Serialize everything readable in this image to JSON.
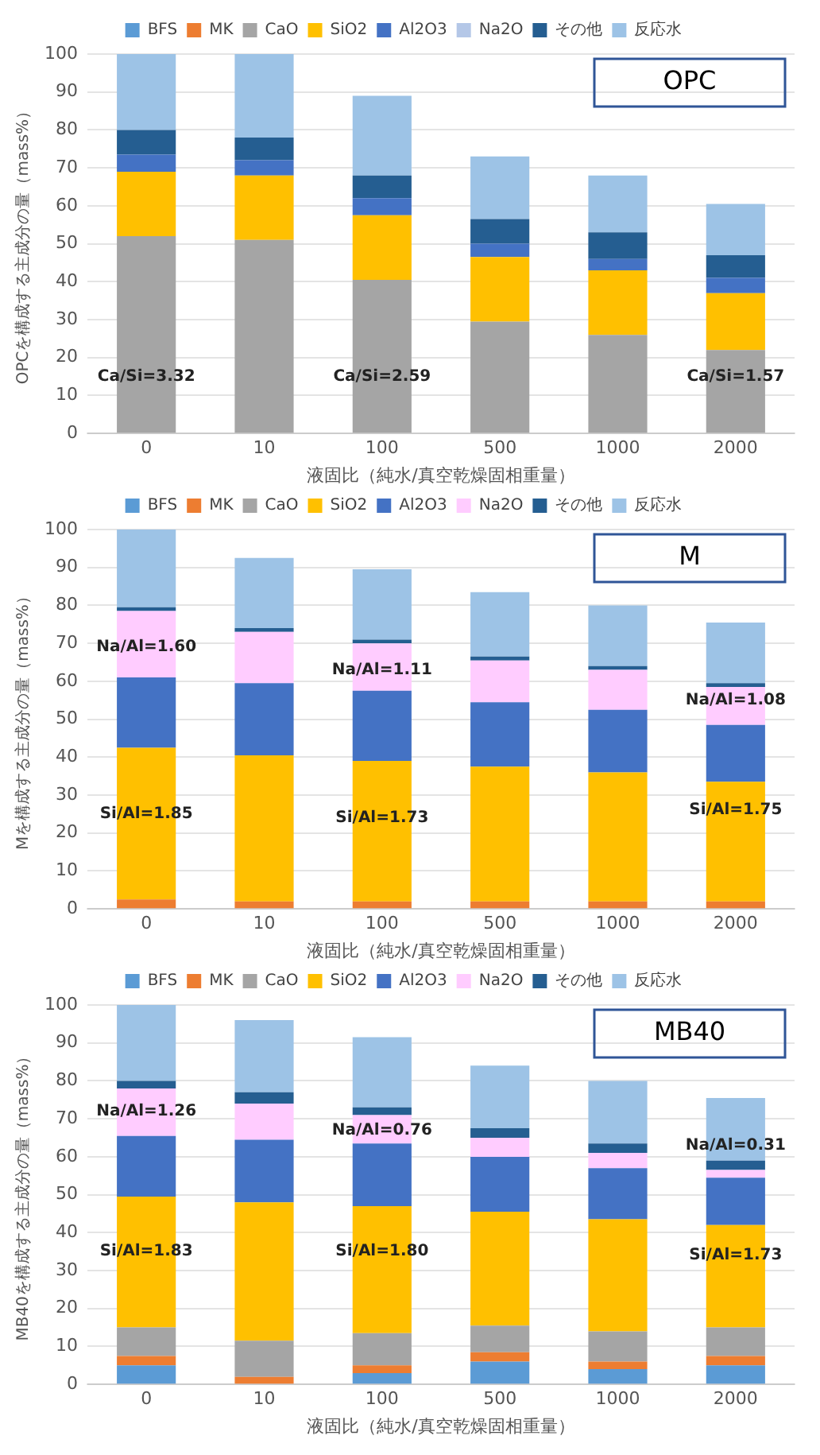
{
  "chart_data": [
    {
      "type": "bar",
      "stacked": true,
      "legend": "top",
      "grid": "y",
      "xlabel": "液固比（純水/真空乾燥固相重量）",
      "ylabel": "OPCを構成する主成分の量（mass%）",
      "categories": [
        "0",
        "10",
        "100",
        "500",
        "1000",
        "2000"
      ],
      "ylim": [
        0,
        100
      ],
      "yticks": [
        0,
        10,
        20,
        30,
        40,
        50,
        60,
        70,
        80,
        90,
        100
      ],
      "series": [
        {
          "name": "BFS",
          "color": "#5b9bd5",
          "values": [
            0,
            0,
            0,
            0,
            0,
            0
          ]
        },
        {
          "name": "MK",
          "color": "#ed7d31",
          "values": [
            0,
            0,
            0,
            0,
            0,
            0
          ]
        },
        {
          "name": "CaO",
          "color": "#a5a5a5",
          "values": [
            52,
            51,
            40.5,
            29.5,
            26,
            22
          ]
        },
        {
          "name": "SiO2",
          "color": "#ffc000",
          "values": [
            17,
            17,
            17,
            17,
            17,
            15
          ]
        },
        {
          "name": "Al2O3",
          "color": "#4472c4",
          "values": [
            4.5,
            4,
            4.5,
            3.5,
            3,
            4
          ]
        },
        {
          "name": "Na2O",
          "color": "#b4c7e7",
          "values": [
            0,
            0,
            0,
            0,
            0,
            0
          ]
        },
        {
          "name": "その他",
          "color": "#255e91",
          "values": [
            6.5,
            6,
            6,
            6.5,
            7,
            6
          ]
        },
        {
          "name": "反応水",
          "color": "#9dc3e6",
          "values": [
            20,
            22,
            21,
            16.5,
            15,
            13.5
          ]
        }
      ],
      "annotations": [
        "OPC",
        "Ca/Si=3.32",
        "Ca/Si=2.59",
        "Ca/Si=1.57"
      ]
    },
    {
      "type": "bar",
      "stacked": true,
      "legend": "top",
      "grid": "y",
      "xlabel": "液固比（純水/真空乾燥固相重量）",
      "ylabel": "Mを構成する主成分の量（mass%）",
      "categories": [
        "0",
        "10",
        "100",
        "500",
        "1000",
        "2000"
      ],
      "ylim": [
        0,
        100
      ],
      "yticks": [
        0,
        10,
        20,
        30,
        40,
        50,
        60,
        70,
        80,
        90,
        100
      ],
      "series": [
        {
          "name": "BFS",
          "color": "#5b9bd5",
          "values": [
            0,
            0,
            0,
            0,
            0,
            0
          ]
        },
        {
          "name": "MK",
          "color": "#ed7d31",
          "values": [
            2.5,
            2,
            2,
            2,
            2,
            2
          ]
        },
        {
          "name": "CaO",
          "color": "#a5a5a5",
          "values": [
            0,
            0,
            0,
            0,
            0,
            0
          ]
        },
        {
          "name": "SiO2",
          "color": "#ffc000",
          "values": [
            40,
            38.5,
            37,
            35.5,
            34,
            31.5
          ]
        },
        {
          "name": "Al2O3",
          "color": "#4472c4",
          "values": [
            18.5,
            19,
            18.5,
            17,
            16.5,
            15
          ]
        },
        {
          "name": "Na2O",
          "color": "#ffccff",
          "values": [
            17.5,
            13.5,
            12.5,
            11,
            10.5,
            10
          ]
        },
        {
          "name": "その他",
          "color": "#255e91",
          "values": [
            1,
            1,
            1,
            1,
            1,
            1
          ]
        },
        {
          "name": "反応水",
          "color": "#9dc3e6",
          "values": [
            20.5,
            18.5,
            18.5,
            17,
            16,
            16
          ]
        }
      ],
      "annotations": [
        "M",
        "Na/Al=1.60",
        "Na/Al=1.11",
        "Na/Al=1.08",
        "Si/Al=1.85",
        "Si/Al=1.73",
        "Si/Al=1.75"
      ]
    },
    {
      "type": "bar",
      "stacked": true,
      "legend": "top",
      "grid": "y",
      "xlabel": "液固比（純水/真空乾燥固相重量）",
      "ylabel": "MB40を構成する主成分の量（mass%）",
      "categories": [
        "0",
        "10",
        "100",
        "500",
        "1000",
        "2000"
      ],
      "ylim": [
        0,
        100
      ],
      "yticks": [
        0,
        10,
        20,
        30,
        40,
        50,
        60,
        70,
        80,
        90,
        100
      ],
      "series": [
        {
          "name": "BFS",
          "color": "#5b9bd5",
          "values": [
            5,
            0,
            3,
            6,
            4,
            5
          ]
        },
        {
          "name": "MK",
          "color": "#ed7d31",
          "values": [
            2.5,
            2,
            2,
            2.5,
            2,
            2.5
          ]
        },
        {
          "name": "CaO",
          "color": "#a5a5a5",
          "values": [
            7.5,
            9.5,
            8.5,
            7,
            8,
            7.5
          ]
        },
        {
          "name": "SiO2",
          "color": "#ffc000",
          "values": [
            34.5,
            36.5,
            33.5,
            30,
            29.5,
            27
          ]
        },
        {
          "name": "Al2O3",
          "color": "#4472c4",
          "values": [
            16,
            16.5,
            16.5,
            14.5,
            13.5,
            12.5
          ]
        },
        {
          "name": "Na2O",
          "color": "#ffccff",
          "values": [
            12.5,
            9.5,
            7.5,
            5,
            4,
            2
          ]
        },
        {
          "name": "その他",
          "color": "#255e91",
          "values": [
            2,
            3,
            2,
            2.5,
            2.5,
            2.5
          ]
        },
        {
          "name": "反応水",
          "color": "#9dc3e6",
          "values": [
            20,
            19,
            18.5,
            16.5,
            16.5,
            16.5
          ]
        }
      ],
      "annotations": [
        "MB40",
        "Na/Al=1.26",
        "Na/Al=0.76",
        "Na/Al=0.31",
        "Si/Al=1.83",
        "Si/Al=1.80",
        "Si/Al=1.73"
      ]
    }
  ]
}
